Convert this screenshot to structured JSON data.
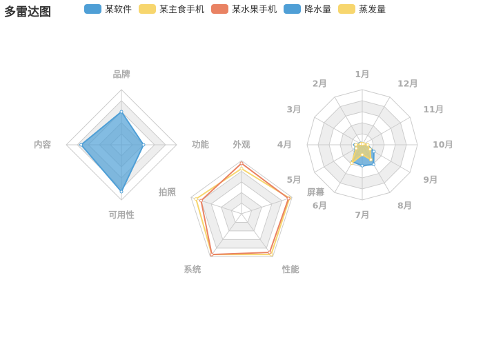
{
  "title": "多雷达图",
  "chart_data": [
    {
      "type": "radar",
      "indicators": [
        "品牌",
        "内容",
        "可用性",
        "功能"
      ],
      "max": 100,
      "series": [
        {
          "name": "某软件",
          "values": [
            60,
            73,
            85,
            40
          ]
        }
      ]
    },
    {
      "type": "radar",
      "indicators": [
        "外观",
        "拍照",
        "系统",
        "性能",
        "屏幕"
      ],
      "max": 100,
      "series": [
        {
          "name": "某主食手机",
          "values": [
            85,
            90,
            95,
            95,
            95
          ]
        },
        {
          "name": "某水果手机",
          "values": [
            95,
            80,
            95,
            90,
            93
          ]
        }
      ]
    },
    {
      "type": "radar",
      "indicators": [
        "1月",
        "2月",
        "3月",
        "4月",
        "5月",
        "6月",
        "7月",
        "8月",
        "9月",
        "10月",
        "11月",
        "12月"
      ],
      "max": 200,
      "series": [
        {
          "name": "降水量",
          "values": [
            2.6,
            5.9,
            9.0,
            26.4,
            28.7,
            70.7,
            75.6,
            82.2,
            48.7,
            18.8,
            6.0,
            2.3
          ]
        },
        {
          "name": "蒸发量",
          "values": [
            2.0,
            4.9,
            7.0,
            23.2,
            25.6,
            76.7,
            35.6,
            62.2,
            32.6,
            20.0,
            6.4,
            3.3
          ]
        }
      ]
    }
  ],
  "legend": [
    {
      "name": "某软件",
      "color": "#4f9fd6"
    },
    {
      "name": "某主食手机",
      "color": "#f7d66e"
    },
    {
      "name": "某水果手机",
      "color": "#e98263"
    },
    {
      "name": "降水量",
      "color": "#4f9fd6"
    },
    {
      "name": "蒸发量",
      "color": "#f7d66e"
    }
  ],
  "colors": {
    "axis_label": "#aaaaaa",
    "split_area": [
      "#ffffff",
      "#eeeeee"
    ],
    "split_line": "#cccccc"
  }
}
